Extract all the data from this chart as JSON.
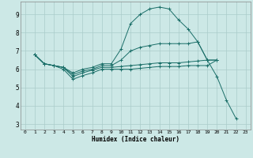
{
  "xlabel": "Humidex (Indice chaleur)",
  "bg_color": "#cce8e6",
  "grid_color": "#aaccca",
  "line_color": "#1a6e68",
  "xlim": [
    -0.5,
    23.5
  ],
  "ylim": [
    2.7,
    9.7
  ],
  "yticks": [
    3,
    4,
    5,
    6,
    7,
    8,
    9
  ],
  "xticks": [
    0,
    1,
    2,
    3,
    4,
    5,
    6,
    7,
    8,
    9,
    10,
    11,
    12,
    13,
    14,
    15,
    16,
    17,
    18,
    19,
    20,
    21,
    22,
    23
  ],
  "series": [
    {
      "x": [
        1,
        2,
        3,
        4,
        5,
        6,
        7,
        8,
        9,
        10,
        11,
        12,
        13,
        14,
        15,
        16,
        17,
        18,
        19,
        20,
        21,
        22
      ],
      "y": [
        6.8,
        6.3,
        6.2,
        6.1,
        5.8,
        6.0,
        6.1,
        6.3,
        6.3,
        7.1,
        8.5,
        9.0,
        9.3,
        9.4,
        9.3,
        8.7,
        8.2,
        7.5,
        6.5,
        5.6,
        4.3,
        3.3
      ]
    },
    {
      "x": [
        1,
        2,
        3,
        4,
        5,
        6,
        7,
        8,
        9,
        10,
        11,
        12,
        13,
        14,
        15,
        16,
        17,
        18,
        19,
        20
      ],
      "y": [
        6.8,
        6.3,
        6.2,
        6.1,
        5.7,
        5.9,
        6.0,
        6.2,
        6.2,
        6.5,
        7.0,
        7.2,
        7.3,
        7.4,
        7.4,
        7.4,
        7.4,
        7.5,
        6.5,
        6.5
      ]
    },
    {
      "x": [
        1,
        2,
        3,
        4,
        5,
        6,
        7,
        8,
        9,
        10,
        11,
        12,
        13,
        14,
        15,
        16,
        17,
        18,
        19,
        20
      ],
      "y": [
        6.8,
        6.3,
        6.2,
        6.1,
        5.6,
        5.8,
        5.95,
        6.1,
        6.1,
        6.15,
        6.2,
        6.25,
        6.3,
        6.35,
        6.35,
        6.35,
        6.4,
        6.45,
        6.5,
        6.5
      ]
    },
    {
      "x": [
        1,
        2,
        3,
        4,
        5,
        6,
        7,
        8,
        9,
        10,
        11,
        12,
        13,
        14,
        15,
        16,
        17,
        18,
        19,
        20
      ],
      "y": [
        6.8,
        6.3,
        6.2,
        6.0,
        5.45,
        5.65,
        5.8,
        6.0,
        6.0,
        6.0,
        6.0,
        6.05,
        6.1,
        6.15,
        6.15,
        6.15,
        6.2,
        6.2,
        6.2,
        6.5
      ]
    }
  ]
}
